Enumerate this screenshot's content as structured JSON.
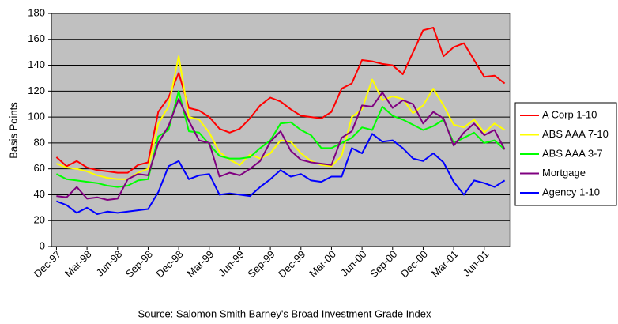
{
  "chart_data": {
    "type": "line",
    "y_axis_label": "Basis Points",
    "source": "Source: Salomon Smith Barney's Broad Investment Grade Index",
    "categories": [
      "Dec-97",
      null,
      null,
      "Mar-98",
      null,
      null,
      "Jun-98",
      null,
      null,
      "Sep-98",
      null,
      null,
      "Dec-98",
      null,
      null,
      "Mar-99",
      null,
      null,
      "Jun-99",
      null,
      null,
      "Sep-99",
      null,
      null,
      "Dec-99",
      null,
      null,
      "Mar-00",
      null,
      null,
      "Jun-00",
      null,
      null,
      "Sep-00",
      null,
      null,
      "Dec-00",
      null,
      null,
      "Mar-01",
      null,
      null,
      "Jun-01",
      null,
      null
    ],
    "series": [
      {
        "name": "A Corp 1-10",
        "color": "#ff0000",
        "values": [
          69,
          62,
          66,
          61,
          59,
          58,
          57,
          57,
          63,
          65,
          104,
          115,
          134,
          107,
          105,
          100,
          91,
          88,
          91,
          99,
          109,
          115,
          112,
          106,
          101,
          100,
          99,
          104,
          122,
          126,
          144,
          143,
          141,
          140,
          133,
          150,
          167,
          169,
          147,
          154,
          157,
          144,
          131,
          132,
          126
        ]
      },
      {
        "name": "ABS AAA 7-10",
        "color": "#ffff00",
        "values": [
          64,
          61,
          60,
          58,
          55,
          53,
          52,
          52,
          57,
          60,
          95,
          108,
          147,
          100,
          98,
          88,
          73,
          67,
          63,
          71,
          68,
          72,
          82,
          81,
          72,
          66,
          63,
          62,
          70,
          100,
          106,
          129,
          113,
          116,
          114,
          103,
          109,
          122,
          109,
          94,
          92,
          98,
          88,
          95,
          90
        ]
      },
      {
        "name": "ABS AAA 3-7",
        "color": "#00ff00",
        "values": [
          56,
          52,
          51,
          50,
          49,
          47,
          46,
          47,
          51,
          52,
          85,
          90,
          120,
          89,
          88,
          79,
          70,
          68,
          68,
          69,
          76,
          82,
          95,
          96,
          90,
          86,
          76,
          76,
          80,
          84,
          92,
          90,
          108,
          101,
          98,
          94,
          90,
          93,
          98,
          80,
          84,
          88,
          80,
          82,
          75
        ]
      },
      {
        "name": "Mortgage",
        "color": "#800080",
        "values": [
          39,
          38,
          46,
          37,
          38,
          36,
          37,
          52,
          56,
          55,
          80,
          93,
          114,
          97,
          82,
          80,
          54,
          57,
          55,
          60,
          66,
          81,
          89,
          74,
          67,
          65,
          64,
          63,
          84,
          89,
          109,
          108,
          119,
          107,
          113,
          110,
          95,
          104,
          99,
          78,
          88,
          95,
          86,
          90,
          75
        ]
      },
      {
        "name": "Agency 1-10",
        "color": "#0000ff",
        "values": [
          35,
          32,
          26,
          30,
          25,
          27,
          26,
          27,
          28,
          29,
          42,
          62,
          66,
          52,
          55,
          56,
          40,
          41,
          40,
          39,
          46,
          52,
          59,
          54,
          56,
          51,
          50,
          54,
          54,
          76,
          72,
          87,
          81,
          82,
          76,
          68,
          66,
          72,
          65,
          50,
          40,
          51,
          49,
          46,
          51
        ]
      }
    ],
    "ylim": [
      0,
      180
    ],
    "yticks": [
      0,
      20,
      40,
      60,
      80,
      100,
      120,
      140,
      160,
      180
    ],
    "grid": true,
    "legend": "right",
    "background": "#c0c0c0"
  }
}
